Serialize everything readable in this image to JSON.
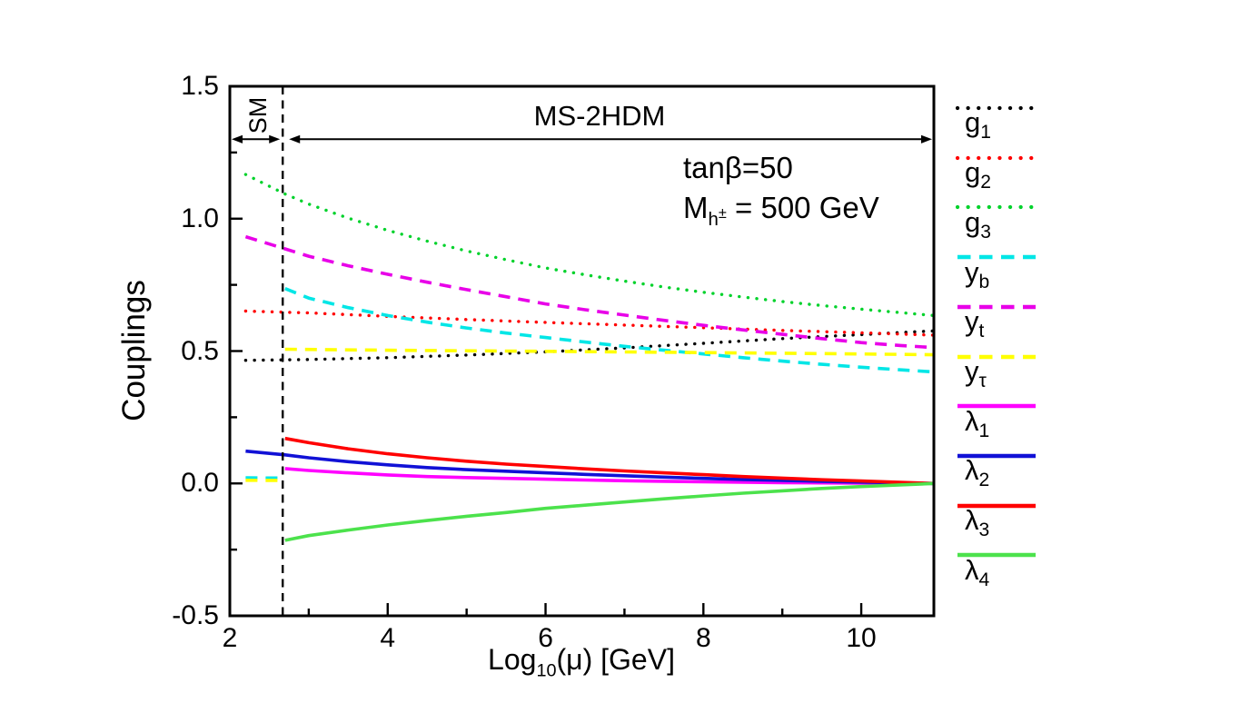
{
  "chart_data": {
    "type": "line",
    "title": "",
    "xlabel": "Log10(μ) [GeV]",
    "xlabel_parts": {
      "base": "Log",
      "sub": "10",
      "rest": "(μ) [GeV]"
    },
    "ylabel": "Couplings",
    "xlim": [
      2,
      10.92
    ],
    "ylim": [
      -0.5,
      1.5
    ],
    "xticks_major": [
      2,
      4,
      6,
      8,
      10
    ],
    "xtick_labels": [
      "2",
      "4",
      "6",
      "8",
      "10"
    ],
    "xticks_minor": [
      3,
      5,
      7,
      9
    ],
    "yticks_major": [
      -0.5,
      0.0,
      0.5,
      1.0,
      1.5
    ],
    "ytick_labels": [
      "-0.5",
      "0.0",
      "0.5",
      "1.0",
      "1.5"
    ],
    "yticks_minor": [
      -0.25,
      0.25,
      0.75,
      1.25
    ],
    "grid": false,
    "legend_position": "right-outside",
    "matching_scale_line": {
      "x": 2.67,
      "style": "dashed",
      "color": "#000000"
    },
    "regions": [
      {
        "label": "SM",
        "x_from": 2.0,
        "x_to": 2.67,
        "arrow_y": 1.3
      },
      {
        "label": "MS-2HDM",
        "x_from": 2.67,
        "x_to": 10.92,
        "arrow_y": 1.3
      }
    ],
    "annotations": [
      {
        "text": "tanβ=50"
      },
      {
        "base": "M",
        "sub": "h",
        "subsup": "±",
        "rest": " = 500 GeV",
        "text": "Mh± = 500 GeV"
      }
    ],
    "series": [
      {
        "name": "g1",
        "label_main": "g",
        "label_sub": "1",
        "color": "#000000",
        "style": "dotted",
        "segments": [
          [
            [
              2.2,
              0.465
            ],
            [
              3,
              0.468
            ],
            [
              4,
              0.475
            ],
            [
              5,
              0.485
            ],
            [
              6,
              0.497
            ],
            [
              7,
              0.512
            ],
            [
              8,
              0.529
            ],
            [
              9,
              0.547
            ],
            [
              10,
              0.562
            ],
            [
              10.92,
              0.576
            ]
          ]
        ]
      },
      {
        "name": "g2",
        "label_main": "g",
        "label_sub": "2",
        "color": "#ff0000",
        "style": "dotted",
        "segments": [
          [
            [
              2.2,
              0.651
            ],
            [
              3,
              0.644
            ],
            [
              4,
              0.631
            ],
            [
              5,
              0.619
            ],
            [
              6,
              0.608
            ],
            [
              7,
              0.598
            ],
            [
              8,
              0.588
            ],
            [
              9,
              0.578
            ],
            [
              10,
              0.569
            ],
            [
              10.92,
              0.56
            ]
          ]
        ]
      },
      {
        "name": "g3",
        "label_main": "g",
        "label_sub": "3",
        "color": "#00d22b",
        "style": "dotted",
        "segments": [
          [
            [
              2.2,
              1.167
            ],
            [
              2.7,
              1.093
            ],
            [
              3,
              1.055
            ],
            [
              3.5,
              1.002
            ],
            [
              4,
              0.956
            ],
            [
              4.5,
              0.915
            ],
            [
              5,
              0.878
            ],
            [
              5.5,
              0.845
            ],
            [
              6,
              0.814
            ],
            [
              6.5,
              0.788
            ],
            [
              7,
              0.764
            ],
            [
              7.5,
              0.742
            ],
            [
              8,
              0.722
            ],
            [
              8.5,
              0.704
            ],
            [
              9,
              0.687
            ],
            [
              9.5,
              0.672
            ],
            [
              10,
              0.658
            ],
            [
              10.5,
              0.645
            ],
            [
              10.92,
              0.634
            ]
          ]
        ]
      },
      {
        "name": "yb",
        "label_main": "y",
        "label_sub": "b",
        "color": "#00e6e6",
        "style": "dashed",
        "segments": [
          [
            [
              2.2,
              0.021
            ],
            [
              2.67,
              0.02
            ]
          ],
          [
            [
              2.7,
              0.736
            ],
            [
              3,
              0.7
            ],
            [
              3.5,
              0.664
            ],
            [
              4,
              0.634
            ],
            [
              4.5,
              0.609
            ],
            [
              5,
              0.587
            ],
            [
              5.5,
              0.568
            ],
            [
              6,
              0.551
            ],
            [
              6.5,
              0.534
            ],
            [
              7,
              0.518
            ],
            [
              7.5,
              0.503
            ],
            [
              8,
              0.489
            ],
            [
              8.5,
              0.475
            ],
            [
              9,
              0.462
            ],
            [
              9.5,
              0.45
            ],
            [
              10,
              0.439
            ],
            [
              10.5,
              0.429
            ],
            [
              10.92,
              0.421
            ]
          ]
        ]
      },
      {
        "name": "yt",
        "label_main": "y",
        "label_sub": "t",
        "color": "#e800e8",
        "style": "dashed",
        "segments": [
          [
            [
              2.2,
              0.932
            ],
            [
              2.7,
              0.886
            ],
            [
              3,
              0.858
            ],
            [
              3.5,
              0.822
            ],
            [
              4,
              0.79
            ],
            [
              4.5,
              0.76
            ],
            [
              5,
              0.732
            ],
            [
              5.5,
              0.705
            ],
            [
              6,
              0.678
            ],
            [
              6.5,
              0.656
            ],
            [
              7,
              0.636
            ],
            [
              7.5,
              0.616
            ],
            [
              8,
              0.597
            ],
            [
              8.5,
              0.58
            ],
            [
              9,
              0.563
            ],
            [
              9.5,
              0.547
            ],
            [
              10,
              0.532
            ],
            [
              10.5,
              0.521
            ],
            [
              10.92,
              0.513
            ]
          ]
        ]
      },
      {
        "name": "ytau",
        "label_main": "y",
        "label_sub": "τ",
        "color": "#ffff00",
        "style": "dashed",
        "segments": [
          [
            [
              2.2,
              0.012
            ],
            [
              2.67,
              0.011
            ]
          ],
          [
            [
              2.7,
              0.507
            ],
            [
              4,
              0.503
            ],
            [
              6,
              0.499
            ],
            [
              8,
              0.494
            ],
            [
              10,
              0.489
            ],
            [
              10.92,
              0.486
            ]
          ]
        ]
      },
      {
        "name": "lambda1",
        "label_main": "λ",
        "label_sub": "1",
        "color": "#ff00ff",
        "style": "solid",
        "segments": [
          [
            [
              2.7,
              0.056
            ],
            [
              3,
              0.049
            ],
            [
              3.5,
              0.04
            ],
            [
              4,
              0.032
            ],
            [
              4.5,
              0.026
            ],
            [
              5,
              0.022
            ],
            [
              5.5,
              0.019
            ],
            [
              6,
              0.016
            ],
            [
              6.5,
              0.013
            ],
            [
              7,
              0.01
            ],
            [
              7.5,
              0.008
            ],
            [
              8,
              0.006
            ],
            [
              8.5,
              0.0045
            ],
            [
              9,
              0.003
            ],
            [
              9.5,
              0.002
            ],
            [
              10,
              0.001
            ],
            [
              10.92,
              0.0
            ]
          ]
        ]
      },
      {
        "name": "lambda2",
        "label_main": "λ",
        "label_sub": "2",
        "color": "#1111d6",
        "style": "solid",
        "segments": [
          [
            [
              2.2,
              0.122
            ],
            [
              2.7,
              0.108
            ],
            [
              3,
              0.097
            ],
            [
              3.5,
              0.082
            ],
            [
              4,
              0.07
            ],
            [
              4.5,
              0.06
            ],
            [
              5,
              0.052
            ],
            [
              5.5,
              0.046
            ],
            [
              6,
              0.04
            ],
            [
              6.5,
              0.034
            ],
            [
              7,
              0.029
            ],
            [
              7.5,
              0.024
            ],
            [
              8,
              0.019
            ],
            [
              8.5,
              0.015
            ],
            [
              9,
              0.011
            ],
            [
              9.5,
              0.008
            ],
            [
              10,
              0.005
            ],
            [
              10.92,
              0.0
            ]
          ]
        ]
      },
      {
        "name": "lambda3",
        "label_main": "λ",
        "label_sub": "3",
        "color": "#ff0000",
        "style": "solid",
        "segments": [
          [
            [
              2.7,
              0.17
            ],
            [
              3,
              0.154
            ],
            [
              3.5,
              0.131
            ],
            [
              4,
              0.112
            ],
            [
              4.5,
              0.097
            ],
            [
              5,
              0.084
            ],
            [
              5.5,
              0.073
            ],
            [
              6,
              0.064
            ],
            [
              6.5,
              0.055
            ],
            [
              7,
              0.047
            ],
            [
              7.5,
              0.04
            ],
            [
              8,
              0.033
            ],
            [
              8.5,
              0.026
            ],
            [
              9,
              0.02
            ],
            [
              9.5,
              0.014
            ],
            [
              10,
              0.009
            ],
            [
              10.92,
              0.0
            ]
          ]
        ]
      },
      {
        "name": "lambda4",
        "label_main": "λ",
        "label_sub": "4",
        "color": "#4ce24c",
        "style": "solid",
        "segments": [
          [
            [
              2.7,
              -0.215
            ],
            [
              3,
              -0.197
            ],
            [
              3.5,
              -0.176
            ],
            [
              4,
              -0.157
            ],
            [
              4.5,
              -0.14
            ],
            [
              5,
              -0.124
            ],
            [
              5.5,
              -0.11
            ],
            [
              6,
              -0.094
            ],
            [
              6.5,
              -0.082
            ],
            [
              7,
              -0.07
            ],
            [
              7.5,
              -0.058
            ],
            [
              8,
              -0.047
            ],
            [
              8.5,
              -0.037
            ],
            [
              9,
              -0.028
            ],
            [
              9.5,
              -0.019
            ],
            [
              10,
              -0.012
            ],
            [
              10.92,
              0.0
            ]
          ]
        ]
      }
    ]
  }
}
